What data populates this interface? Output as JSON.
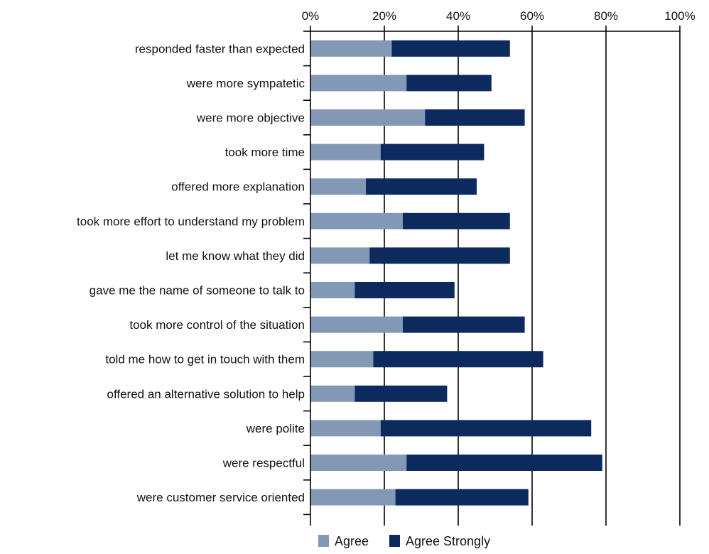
{
  "chart_data": {
    "type": "bar",
    "orientation": "horizontal",
    "stacked": true,
    "categories": [
      "responded faster than expected",
      "were more sympatetic",
      "were more objective",
      "took more time",
      "offered more explanation",
      "took more effort to understand my problem",
      "let me know what they did",
      "gave me the name of someone to talk to",
      "took more control of the situation",
      "told me how to get in touch with them",
      "offered an alternative solution to help",
      "were polite",
      "were respectful",
      "were customer service oriented"
    ],
    "series": [
      {
        "name": "Agree",
        "color": "#8398b4",
        "values": [
          22,
          26,
          31,
          19,
          15,
          25,
          16,
          12,
          25,
          17,
          12,
          19,
          26,
          23
        ]
      },
      {
        "name": "Agree Strongly",
        "color": "#0c2a5e",
        "values": [
          32,
          23,
          27,
          28,
          30,
          29,
          38,
          27,
          33,
          46,
          25,
          57,
          53,
          36
        ]
      }
    ],
    "xlim": [
      0,
      100
    ],
    "xticks": [
      "0%",
      "20%",
      "40%",
      "60%",
      "80%",
      "100%"
    ],
    "xaxis_position": "top",
    "grid": "vertical",
    "legend": "bottom"
  }
}
